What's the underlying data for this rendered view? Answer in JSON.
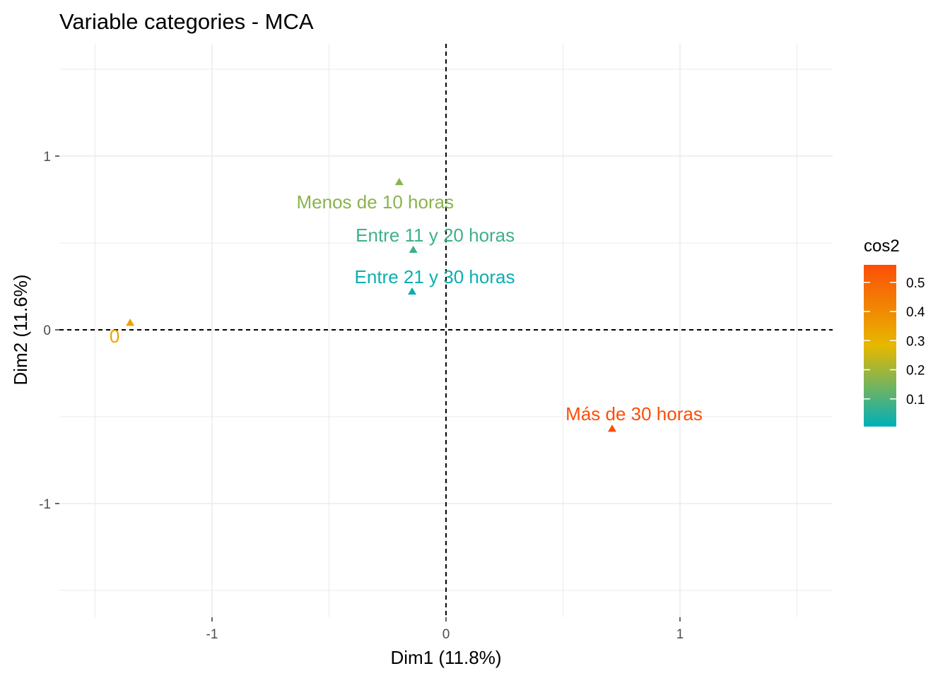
{
  "chart_data": {
    "type": "scatter",
    "title": "Variable categories - MCA",
    "xlabel": "Dim1 (11.8%)",
    "ylabel": "Dim2 (11.6%)",
    "xlim": [
      -1.5,
      1.65
    ],
    "ylim": [
      -1.6,
      1.65
    ],
    "xticks": [
      -1,
      0,
      1
    ],
    "xtick_labels": [
      "-1",
      "0",
      "1"
    ],
    "yticks": [
      -1,
      0,
      1
    ],
    "ytick_labels": [
      "-1",
      "0",
      "1"
    ],
    "reference_lines": {
      "x": 0,
      "y": 0,
      "style": "dashed"
    },
    "grid": true,
    "legend": {
      "title": "cos2",
      "placement": "right",
      "ticks": [
        0.1,
        0.2,
        0.3,
        0.4,
        0.5
      ],
      "tick_labels": [
        "0.1",
        "0.2",
        "0.3",
        "0.4",
        "0.5"
      ],
      "range": [
        0.005,
        0.56
      ],
      "colors": [
        "#00AFBB",
        "#E7B800",
        "#FC4E07"
      ]
    },
    "points": [
      {
        "label": "0",
        "x": -1.35,
        "y": 0.04,
        "cos2": 0.34
      },
      {
        "label": "Menos de 10 horas",
        "x": -0.2,
        "y": 0.85,
        "cos2": 0.17
      },
      {
        "label": "Entre 11 y 20 horas",
        "x": -0.14,
        "y": 0.46,
        "cos2": 0.08
      },
      {
        "label": "Entre 21 y 30 horas",
        "x": -0.145,
        "y": 0.22,
        "cos2": 0.02
      },
      {
        "label": "Más de 30 horas",
        "x": 0.71,
        "y": -0.57,
        "cos2": 0.56
      }
    ]
  }
}
